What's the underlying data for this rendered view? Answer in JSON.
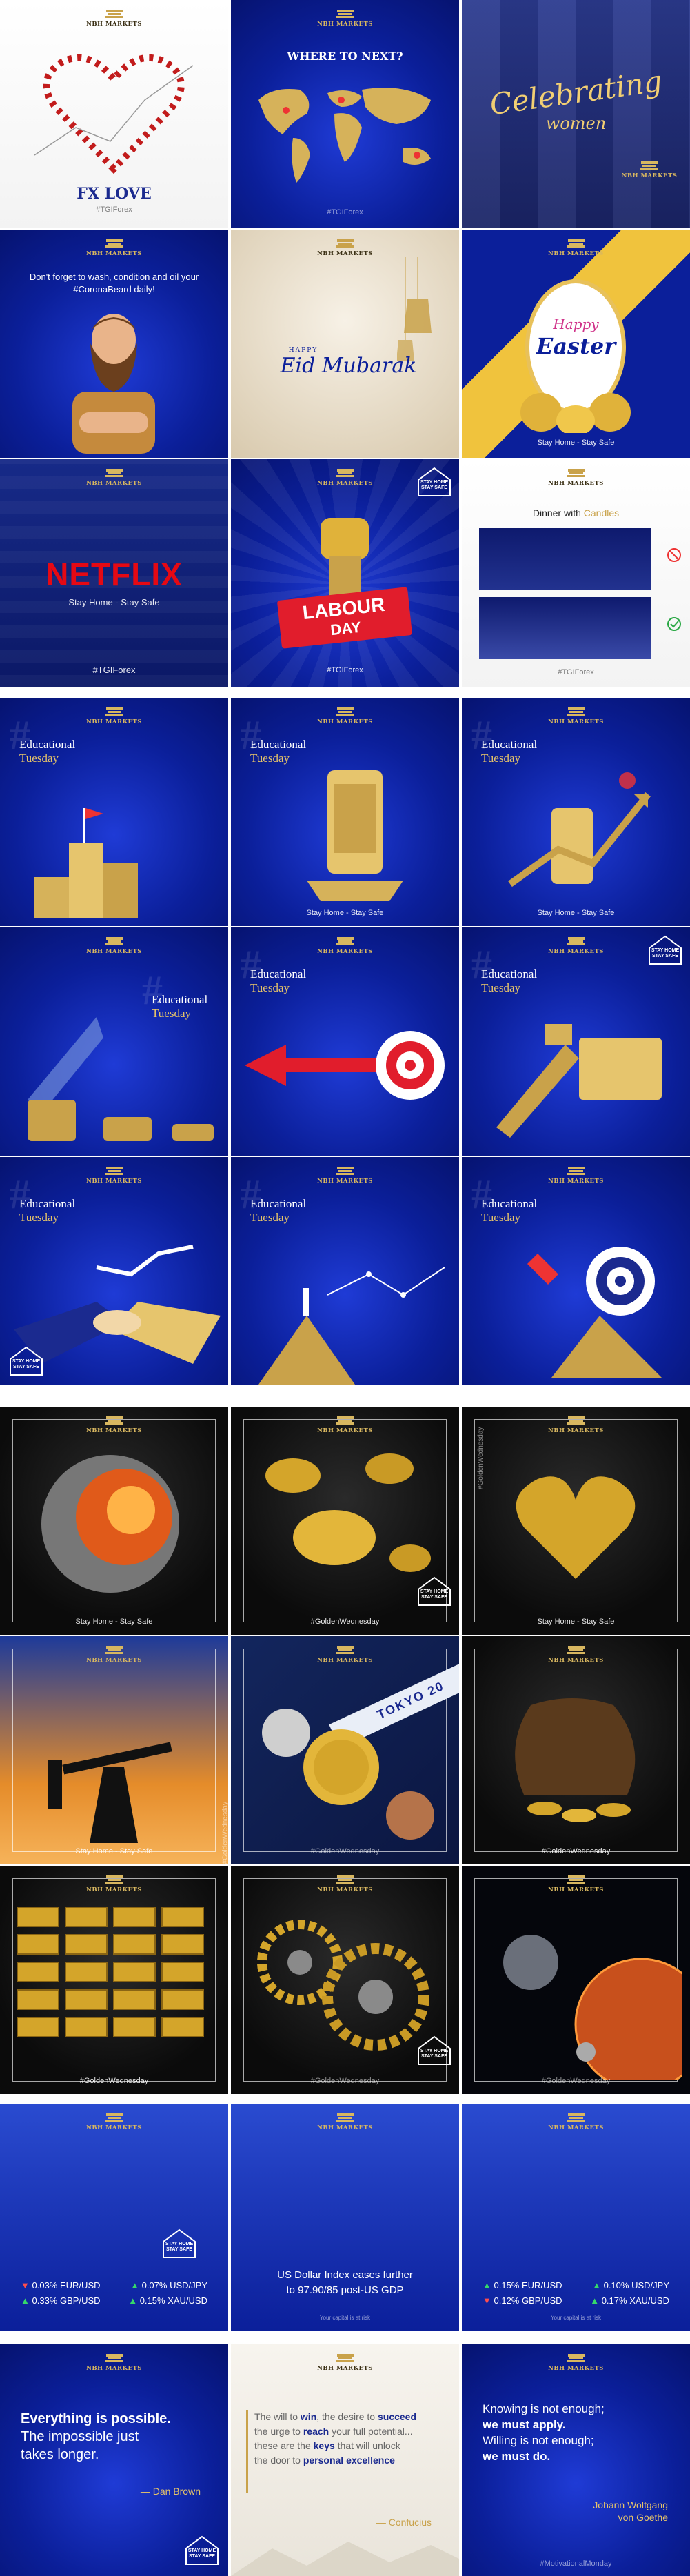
{
  "brand": "NBH MARKETS",
  "badge_text": "STAY HOME\nSTAY SAFE",
  "section1": {
    "tiles": [
      {
        "title": "FX LOVE",
        "hashtag": "#TGIForex"
      },
      {
        "title": "WHERE TO NEXT?",
        "hashtag": "#TGIForex"
      },
      {
        "script_line1": "Celebrating",
        "script_line2": "women"
      },
      {
        "text": "Don't forget to wash, condition and oil your #CoronaBeard daily!"
      },
      {
        "small": "HAPPY",
        "script": "Eid Mubarak"
      },
      {
        "script1": "Happy",
        "script2": "Easter",
        "caption": "Stay Home - Stay Safe"
      },
      {
        "logo_text": "NETFLIX",
        "caption": "Stay Home - Stay Safe",
        "hashtag": "#TGIForex"
      },
      {
        "line1": "LABOUR",
        "line2": "DAY",
        "hashtag": "#TGIForex"
      },
      {
        "title_a": "Dinner with ",
        "title_b": "Candles",
        "hashtag": "#TGIForex"
      }
    ]
  },
  "section2": {
    "label1": "Educational",
    "label2": "Tuesday",
    "caption": "Stay Home - Stay Safe"
  },
  "section3": {
    "caption_stay": "Stay Home - Stay Safe",
    "hashtag": "#GoldenWednesday",
    "vertical": "#GoldenWednesday",
    "medal_text": "TOKYO 20"
  },
  "section4": {
    "left": [
      {
        "dir": "down",
        "arrow": "▼",
        "pct": "0.03%",
        "pair": "EUR/USD"
      },
      {
        "dir": "up",
        "arrow": "▲",
        "pct": "0.07%",
        "pair": "USD/JPY"
      },
      {
        "dir": "up",
        "arrow": "▲",
        "pct": "0.33%",
        "pair": "GBP/USD"
      },
      {
        "dir": "up",
        "arrow": "▲",
        "pct": "0.15%",
        "pair": "XAU/USD"
      }
    ],
    "center_line1": "US Dollar Index eases further",
    "center_line2": "to 97.90/85 post-US GDP",
    "right": [
      {
        "dir": "up",
        "arrow": "▲",
        "pct": "0.15%",
        "pair": "EUR/USD"
      },
      {
        "dir": "up",
        "arrow": "▲",
        "pct": "0.10%",
        "pair": "USD/JPY"
      },
      {
        "dir": "down",
        "arrow": "▼",
        "pct": "0.12%",
        "pair": "GBP/USD"
      },
      {
        "dir": "up",
        "arrow": "▲",
        "pct": "0.17%",
        "pair": "XAU/USD"
      }
    ],
    "risk": "Your capital is at risk"
  },
  "section5": {
    "q1": {
      "a": "Everything is possible.",
      "b": "The impossible just",
      "c": "takes longer.",
      "author": "— Dan Brown"
    },
    "q2": {
      "a1": "The will to ",
      "a2": "win",
      "a3": ", the desire to ",
      "a4": "succeed",
      "b1": "the urge to ",
      "b2": "reach",
      "b3": " your full potential...",
      "c1": "these are the ",
      "c2": "keys",
      "c3": " that will unlock",
      "d1": "the door to ",
      "d2": "personal excellence",
      "author": "— Confucius"
    },
    "q3": {
      "a": "Knowing is not enough;",
      "b": "we must apply.",
      "c": "Willing is not enough;",
      "d": "we must do.",
      "author1": "— Johann Wolfgang",
      "author2": "von Goethe"
    },
    "hashtag": "#MotivationalMonday"
  }
}
